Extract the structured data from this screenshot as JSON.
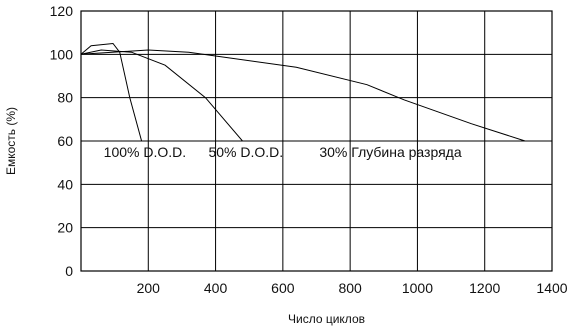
{
  "chart_data": {
    "type": "line",
    "xlabel": "Число циклов",
    "ylabel": "Емкость (%)",
    "xlim": [
      0,
      1400
    ],
    "ylim": [
      0,
      120
    ],
    "x_ticks": [
      200,
      400,
      600,
      800,
      1000,
      1200,
      1400
    ],
    "y_ticks": [
      0,
      20,
      40,
      60,
      80,
      100,
      120
    ],
    "grid": true,
    "legend": "none",
    "series": [
      {
        "name": "100% D.O.D.",
        "color": "#000000",
        "points": [
          [
            0,
            100
          ],
          [
            30,
            104
          ],
          [
            95,
            105
          ],
          [
            115,
            101
          ],
          [
            145,
            80
          ],
          [
            180,
            60
          ],
          [
            240,
            60
          ]
        ]
      },
      {
        "name": "50% D.O.D.",
        "color": "#000000",
        "points": [
          [
            0,
            100
          ],
          [
            60,
            102
          ],
          [
            150,
            101
          ],
          [
            250,
            95
          ],
          [
            370,
            80
          ],
          [
            480,
            60
          ],
          [
            580,
            60
          ]
        ]
      },
      {
        "name": "30% Глубина разряда",
        "color": "#000000",
        "points": [
          [
            0,
            100
          ],
          [
            200,
            102
          ],
          [
            320,
            101
          ],
          [
            640,
            94
          ],
          [
            850,
            86
          ],
          [
            960,
            79
          ],
          [
            1160,
            68
          ],
          [
            1320,
            60
          ]
        ]
      }
    ],
    "annotations": [
      {
        "text": "100% D.O.D.",
        "x": 190,
        "y": 55
      },
      {
        "text": "50% D.O.D.",
        "x": 490,
        "y": 55
      },
      {
        "text": "30% Глубина разряда",
        "x": 920,
        "y": 55
      }
    ]
  }
}
